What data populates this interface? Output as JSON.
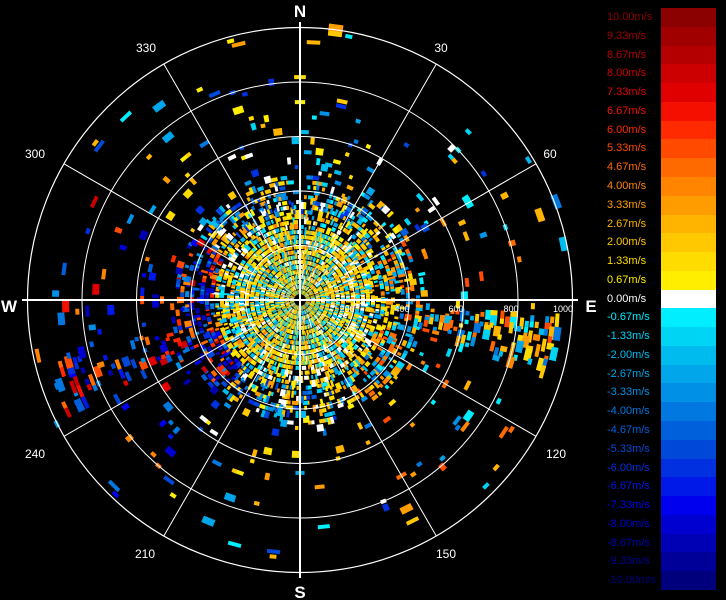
{
  "radar": {
    "compass": {
      "north": "N",
      "east": "E",
      "south": "S",
      "west": "W"
    },
    "azimuth_labels": [
      "30",
      "60",
      "120",
      "150",
      "210",
      "240",
      "300",
      "330"
    ],
    "range_labels": [
      "200",
      "400",
      "600",
      "800",
      "1000"
    ],
    "colors": {
      "background": "#000000",
      "grid": "#ffffff"
    }
  },
  "legend": {
    "entries": [
      {
        "label": "10.00m/s",
        "color": "#8b0000"
      },
      {
        "label": "9.33m/s",
        "color": "#a00000"
      },
      {
        "label": "8.67m/s",
        "color": "#b50000"
      },
      {
        "label": "8.00m/s",
        "color": "#cc0000"
      },
      {
        "label": "7.33m/s",
        "color": "#e00000"
      },
      {
        "label": "6.67m/s",
        "color": "#f50f00"
      },
      {
        "label": "6.00m/s",
        "color": "#ff2a00"
      },
      {
        "label": "5.33m/s",
        "color": "#ff4a00"
      },
      {
        "label": "4.67m/s",
        "color": "#ff6a00"
      },
      {
        "label": "4.00m/s",
        "color": "#ff8400"
      },
      {
        "label": "3.33m/s",
        "color": "#ff9c00"
      },
      {
        "label": "2.67m/s",
        "color": "#ffb400"
      },
      {
        "label": "2.00m/s",
        "color": "#ffc800"
      },
      {
        "label": "1.33m/s",
        "color": "#ffdc00"
      },
      {
        "label": "0.67m/s",
        "color": "#ffee00"
      },
      {
        "label": "0.00m/s",
        "color": "#ffffff"
      },
      {
        "label": "-0.67m/s",
        "color": "#00eeff"
      },
      {
        "label": "-1.33m/s",
        "color": "#00d4f5"
      },
      {
        "label": "-2.00m/s",
        "color": "#00bbee"
      },
      {
        "label": "-2.67m/s",
        "color": "#00a5ea"
      },
      {
        "label": "-3.33m/s",
        "color": "#0090e6"
      },
      {
        "label": "-4.00m/s",
        "color": "#0078e0"
      },
      {
        "label": "-4.67m/s",
        "color": "#0060dc"
      },
      {
        "label": "-5.33m/s",
        "color": "#0048d8"
      },
      {
        "label": "-6.00m/s",
        "color": "#0030e0"
      },
      {
        "label": "-6.67m/s",
        "color": "#0018e8"
      },
      {
        "label": "-7.33m/s",
        "color": "#0000ee"
      },
      {
        "label": "-8.00m/s",
        "color": "#0000d0"
      },
      {
        "label": "-8.67m/s",
        "color": "#0000b4"
      },
      {
        "label": "-9.33m/s",
        "color": "#000098"
      },
      {
        "label": "-10.00m/s",
        "color": "#00007c"
      }
    ]
  }
}
